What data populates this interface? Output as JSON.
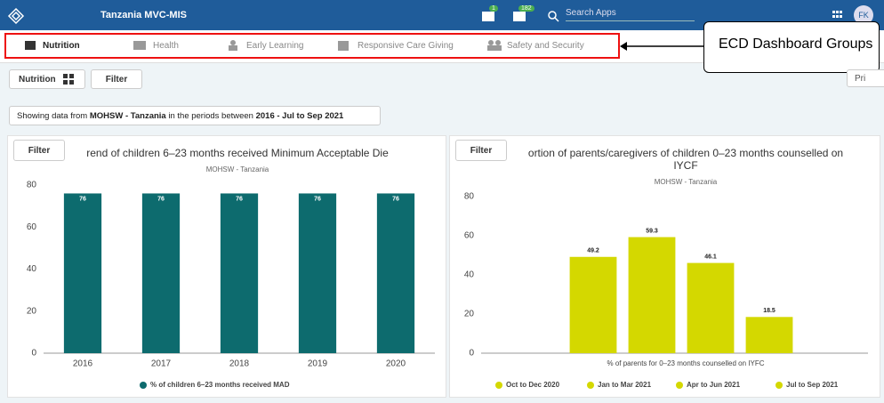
{
  "header": {
    "app_name": "Tanzania MVC-MIS",
    "badges": [
      "1",
      "182"
    ],
    "search_placeholder": "Search Apps",
    "avatar": "FK"
  },
  "tabs": [
    "Nutrition",
    "Health",
    "Early Learning",
    "Responsive Care Giving",
    "Safety and Security"
  ],
  "callout": "ECD Dashboard Groups",
  "toolbar": {
    "dashboard": "Nutrition",
    "filter": "Filter",
    "print": "Pri"
  },
  "info": {
    "prefix": "Showing data from",
    "org": "MOHSW - Tanzania",
    "middle": "in the periods between",
    "period": "2016 - Jul to Sep 2021"
  },
  "chart_data": [
    {
      "type": "bar",
      "filter": "Filter",
      "title": [
        "rend of children 6–23 months received Minimum Acceptable Die"
      ],
      "subtitle": "MOHSW - Tanzania",
      "categories": [
        "2016",
        "2017",
        "2018",
        "2019",
        "2020"
      ],
      "series": [
        {
          "name": "% of children 6–23 months received MAD",
          "color": "#0d6b6e",
          "values": [
            76,
            76,
            76,
            76,
            76
          ]
        }
      ],
      "ylim": [
        0,
        80
      ],
      "yticks": [
        0,
        20,
        40,
        60,
        80
      ]
    },
    {
      "type": "bar",
      "filter": "Filter",
      "title": [
        "ortion of parents/caregivers of children 0–23 months counselled on",
        "IYCF"
      ],
      "subtitle": "MOHSW - Tanzania",
      "x_label": "% of parents for 0–23 months counselled on IYFC",
      "categories": [
        "Oct to Dec 2020",
        "Jan to Mar 2021",
        "Apr to Jun 2021",
        "Jul to Sep 2021"
      ],
      "series": [
        {
          "color": "#d4d800",
          "values": [
            49.2,
            59.3,
            46.1,
            18.5
          ]
        }
      ],
      "ylim": [
        0,
        80
      ],
      "yticks": [
        0,
        20,
        40,
        60,
        80
      ]
    }
  ]
}
